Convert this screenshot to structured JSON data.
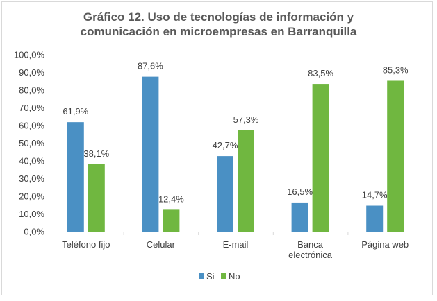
{
  "chart_data": {
    "type": "bar",
    "title": [
      "Gráfico 12. Uso de tecnologías de información y",
      "comunicación en microempresas en Barranquilla"
    ],
    "categories": [
      [
        "Teléfono fijo"
      ],
      [
        "Celular"
      ],
      [
        "E-mail"
      ],
      [
        "Banca",
        "electrónica"
      ],
      [
        "Página web"
      ]
    ],
    "series": [
      {
        "name": "Si",
        "color": "#4a90c4",
        "values": [
          61.9,
          87.6,
          42.7,
          16.5,
          14.7
        ],
        "labels": [
          "61,9%",
          "87,6%",
          "42,7%",
          "16,5%",
          "14,7%"
        ]
      },
      {
        "name": "No",
        "color": "#70b740",
        "values": [
          38.1,
          12.4,
          57.3,
          83.5,
          85.3
        ],
        "labels": [
          "38,1%",
          "12,4%",
          "57,3%",
          "83,5%",
          "85,3%"
        ]
      }
    ],
    "ylim": [
      0,
      100
    ],
    "yticks": [
      0,
      10,
      20,
      30,
      40,
      50,
      60,
      70,
      80,
      90,
      100
    ],
    "ytick_labels": [
      "0,0%",
      "10,0%",
      "20,0%",
      "30,0%",
      "40,0%",
      "50,0%",
      "60,0%",
      "70,0%",
      "80,0%",
      "90,0%",
      "100,0%"
    ],
    "grid": false,
    "legend": "bottom"
  }
}
